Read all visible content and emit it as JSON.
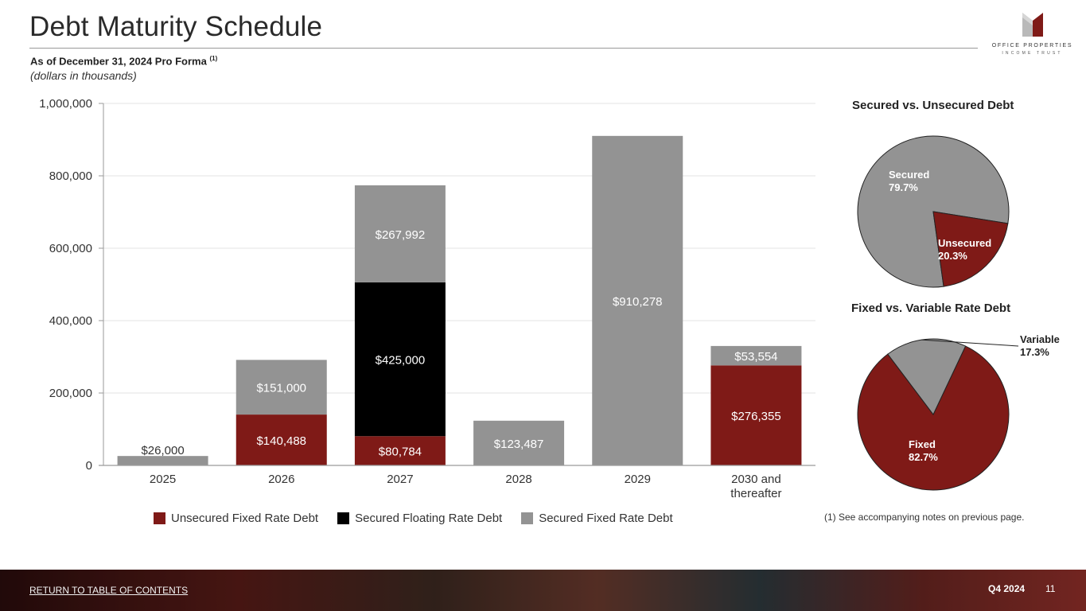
{
  "header": {
    "title": "Debt Maturity Schedule",
    "subtitle": "As of December 31, 2024 Pro Forma",
    "subtitle_note": "(1)",
    "units": "(dollars in thousands)"
  },
  "logo": {
    "line1": "OFFICE PROPERTIES",
    "line2": "INCOME TRUST"
  },
  "colors": {
    "unsecured_fixed": "#7f1a17",
    "secured_floating": "#000000",
    "secured_fixed": "#939393",
    "footer_text": "#ffffff"
  },
  "chart_data": [
    {
      "type": "bar",
      "stacked": true,
      "categories": [
        "2025",
        "2026",
        "2027",
        "2028",
        "2029",
        "2030 and thereafter"
      ],
      "series": [
        {
          "name": "Unsecured Fixed Rate Debt",
          "color": "#7f1a17",
          "values": [
            0,
            140488,
            80784,
            0,
            0,
            276355
          ],
          "labels": [
            "",
            "$140,488",
            "$80,784",
            "",
            "",
            "$276,355"
          ]
        },
        {
          "name": "Secured Floating Rate Debt",
          "color": "#000000",
          "values": [
            0,
            0,
            425000,
            0,
            0,
            0
          ],
          "labels": [
            "",
            "",
            "$425,000",
            "",
            "",
            ""
          ]
        },
        {
          "name": "Secured Fixed Rate Debt",
          "color": "#939393",
          "values": [
            26000,
            151000,
            267992,
            123487,
            910278,
            53554
          ],
          "labels": [
            "$26,000",
            "$151,000",
            "$267,992",
            "$123,487",
            "$910,278",
            "$53,554"
          ]
        }
      ],
      "ylim": [
        0,
        1000000
      ],
      "yticks": [
        0,
        200000,
        400000,
        600000,
        800000,
        1000000
      ],
      "ytick_labels": [
        "0",
        "200,000",
        "400,000",
        "600,000",
        "800,000",
        "1,000,000"
      ],
      "grid": true,
      "legend": "bottom"
    },
    {
      "type": "pie",
      "title": "Secured vs. Unsecured Debt",
      "slices": [
        {
          "name": "Secured",
          "label": "79.7%",
          "value": 79.7,
          "color": "#939393"
        },
        {
          "name": "Unsecured",
          "label": "20.3%",
          "value": 20.3,
          "color": "#7f1a17"
        }
      ]
    },
    {
      "type": "pie",
      "title": "Fixed vs. Variable Rate Debt",
      "slices": [
        {
          "name": "Fixed",
          "label": "82.7%",
          "value": 82.7,
          "color": "#7f1a17"
        },
        {
          "name": "Variable",
          "label": "17.3%",
          "value": 17.3,
          "color": "#939393"
        }
      ]
    }
  ],
  "legend": {
    "items": [
      {
        "label": "Unsecured Fixed Rate Debt",
        "color": "#7f1a17"
      },
      {
        "label": "Secured Floating Rate Debt",
        "color": "#000000"
      },
      {
        "label": "Secured Fixed Rate Debt",
        "color": "#939393"
      }
    ]
  },
  "footnote": "(1) See accompanying notes on previous page.",
  "footer": {
    "toc_link": "RETURN TO TABLE OF CONTENTS",
    "quarter": "Q4 2024",
    "page": "11"
  }
}
